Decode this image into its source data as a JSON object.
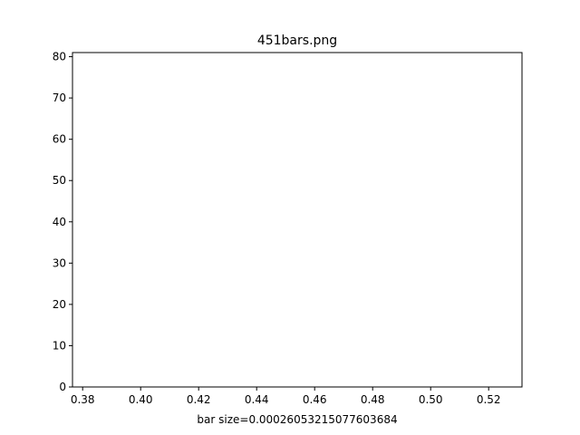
{
  "chart_data": {
    "type": "bar",
    "title": "451bars.png",
    "xlabel": "bar size=0.00026053215077603684",
    "ylabel": "",
    "xlim": [
      0.3765,
      0.5315
    ],
    "ylim": [
      0,
      81
    ],
    "xticks": [
      0.38,
      0.4,
      0.42,
      0.44,
      0.46,
      0.48,
      0.5,
      0.52
    ],
    "xtick_labels": [
      "0.38",
      "0.40",
      "0.42",
      "0.44",
      "0.46",
      "0.48",
      "0.50",
      "0.52"
    ],
    "yticks": [
      0,
      10,
      20,
      30,
      40,
      50,
      60,
      70,
      80
    ],
    "ytick_labels": [
      "0",
      "10",
      "20",
      "30",
      "40",
      "50",
      "60",
      "70",
      "80"
    ],
    "grid": false,
    "series": [],
    "colors": {
      "axes": "#000000",
      "background": "#ffffff"
    }
  }
}
